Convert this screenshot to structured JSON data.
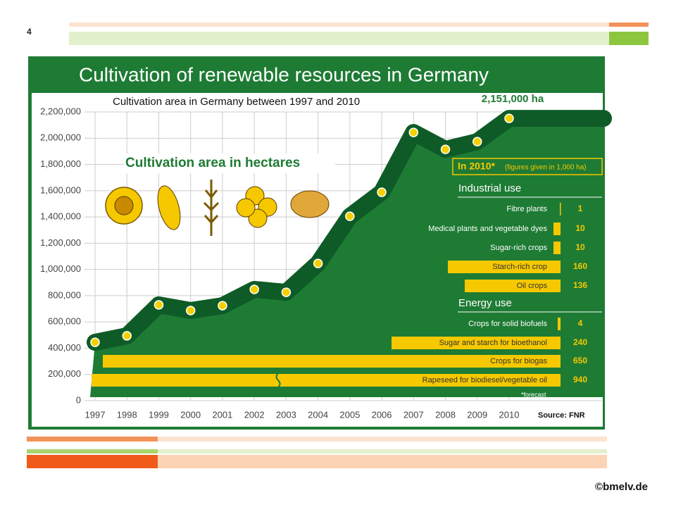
{
  "slide_number": "4",
  "footer": "©bmelv.de",
  "chart_data": [
    {
      "type": "area",
      "title": "Cultivation of renewable resources in Germany",
      "subtitle": "Cultivation area in Germany between 1997 and 2010",
      "annotation": "Cultivation area in hectares",
      "x": [
        "1997",
        "1998",
        "1999",
        "2000",
        "2001",
        "2002",
        "2003",
        "2004",
        "2005",
        "2006",
        "2007",
        "2008",
        "2009",
        "2010"
      ],
      "values": [
        445000,
        494000,
        730000,
        687000,
        724000,
        848000,
        826000,
        1046000,
        1405000,
        1588000,
        2044000,
        1915000,
        1974000,
        2151000
      ],
      "value_labels": [
        null,
        null,
        null,
        null,
        null,
        null,
        null,
        null,
        null,
        null,
        null,
        null,
        null,
        "2,151,000 ha"
      ],
      "ylim": [
        0,
        2200000
      ],
      "yticks": [
        0,
        {
          "value": 200000,
          "label": "200,000"
        },
        {
          "value": 400000,
          "label": "400,000"
        },
        {
          "value": 600000,
          "label": "600,000"
        },
        {
          "value": 800000,
          "label": "800,000"
        },
        {
          "value": 1000000,
          "label": "1,000,000"
        },
        {
          "value": 1200000,
          "label": "1,200,000"
        },
        {
          "value": 1400000,
          "label": "1,400,000"
        },
        {
          "value": 1600000,
          "label": "1,600,000"
        },
        {
          "value": 1800000,
          "label": "1,800,000"
        },
        {
          "value": 2000000,
          "label": "2,000,000"
        },
        {
          "value": 2200000,
          "label": "2,200,000"
        }
      ],
      "grid": true,
      "color": "#1e7b34",
      "line_color": "#0e5b27",
      "marker_color": "#f5d000",
      "source": "Source: FNR"
    },
    {
      "type": "bar",
      "orientation": "horizontal",
      "title": "In 2010*",
      "subtitle": "(figures given in 1,000 ha)",
      "color": "#f5c800",
      "groups": [
        {
          "name": "Industrial use",
          "categories": [
            "Fibre plants",
            "Medical plants and vegetable dyes",
            "Sugar-rich crops",
            "Starch-rich crop",
            "Oil crops"
          ],
          "values": [
            1,
            10,
            10,
            160,
            136
          ]
        },
        {
          "name": "Energy use",
          "categories": [
            "Crops for solid biofuels",
            "Sugar and starch for bioethanol",
            "Crops for biogas",
            "Rapeseed for biodiesel/vegetable oil"
          ],
          "values": [
            4,
            240,
            650,
            940
          ]
        }
      ],
      "footnote": "*forecast"
    }
  ]
}
